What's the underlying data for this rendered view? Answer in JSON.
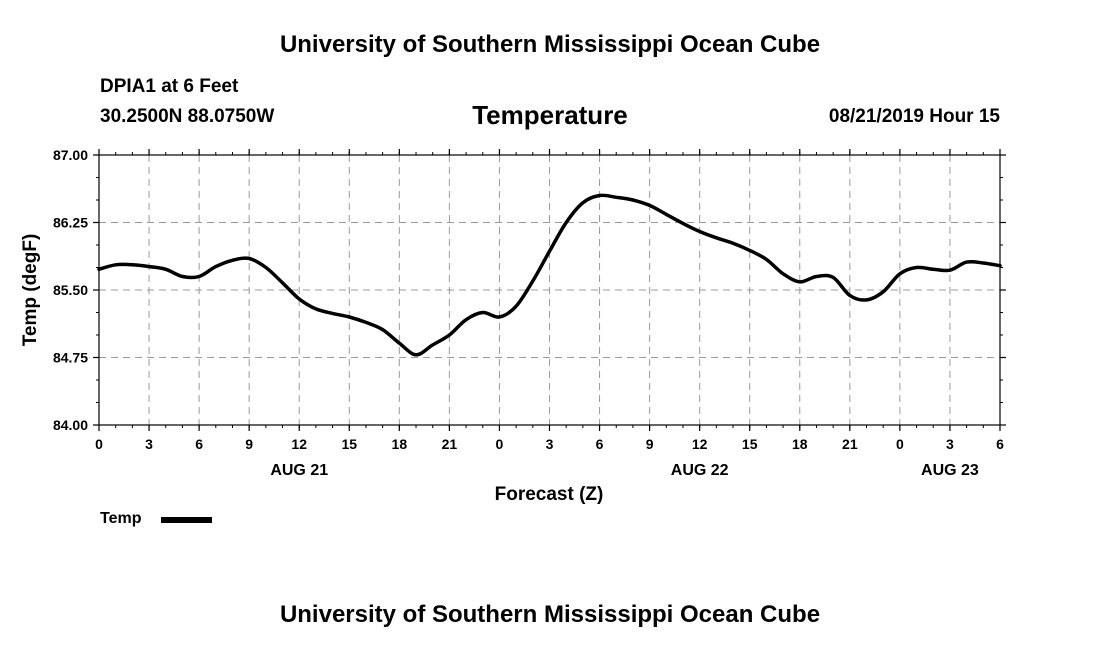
{
  "page": {
    "top_title": "University of Southern Mississippi Ocean Cube",
    "bottom_title": "University of Southern Mississippi Ocean Cube",
    "station": "DPIA1 at 6 Feet",
    "location": "30.2500N 88.0750W",
    "datetime": "08/21/2019 Hour 15"
  },
  "chart_data": {
    "type": "line",
    "title": "Temperature",
    "xlabel": "Forecast (Z)",
    "ylabel": "Temp (degF)",
    "ylim": [
      84.0,
      87.0
    ],
    "yticks": [
      "84.00",
      "84.75",
      "85.50",
      "86.25",
      "87.00"
    ],
    "xlim": [
      0,
      54
    ],
    "xtick_labels": [
      "0",
      "3",
      "6",
      "9",
      "12",
      "15",
      "18",
      "21",
      "0",
      "3",
      "6",
      "9",
      "12",
      "15",
      "18",
      "21",
      "0",
      "3",
      "6"
    ],
    "day_labels": [
      {
        "text": "AUG 21",
        "x": 12
      },
      {
        "text": "AUG 22",
        "x": 36
      },
      {
        "text": "AUG 23",
        "x": 51
      }
    ],
    "grid": true,
    "legend": [
      {
        "name": "Temp",
        "color": "#000000"
      }
    ],
    "series": [
      {
        "name": "Temp",
        "x": [
          0,
          1,
          2,
          3,
          4,
          5,
          6,
          7,
          8,
          9,
          10,
          11,
          12,
          13,
          14,
          15,
          16,
          17,
          18,
          19,
          20,
          21,
          22,
          23,
          24,
          25,
          26,
          27,
          28,
          29,
          30,
          31,
          32,
          33,
          34,
          35,
          36,
          37,
          38,
          39,
          40,
          41,
          42,
          43,
          44,
          45,
          46,
          47,
          48,
          49,
          50,
          51,
          52,
          53,
          54
        ],
        "values": [
          85.73,
          85.78,
          85.78,
          85.76,
          85.73,
          85.65,
          85.65,
          85.76,
          85.83,
          85.85,
          85.75,
          85.58,
          85.4,
          85.29,
          85.24,
          85.2,
          85.14,
          85.06,
          84.91,
          84.78,
          84.89,
          85.0,
          85.17,
          85.25,
          85.2,
          85.32,
          85.6,
          85.93,
          86.25,
          86.47,
          86.55,
          86.53,
          86.5,
          86.44,
          86.34,
          86.24,
          86.15,
          86.08,
          86.02,
          85.94,
          85.84,
          85.68,
          85.59,
          85.65,
          85.64,
          85.44,
          85.39,
          85.48,
          85.68,
          85.75,
          85.73,
          85.72,
          85.81,
          85.8,
          85.77
        ]
      }
    ]
  }
}
